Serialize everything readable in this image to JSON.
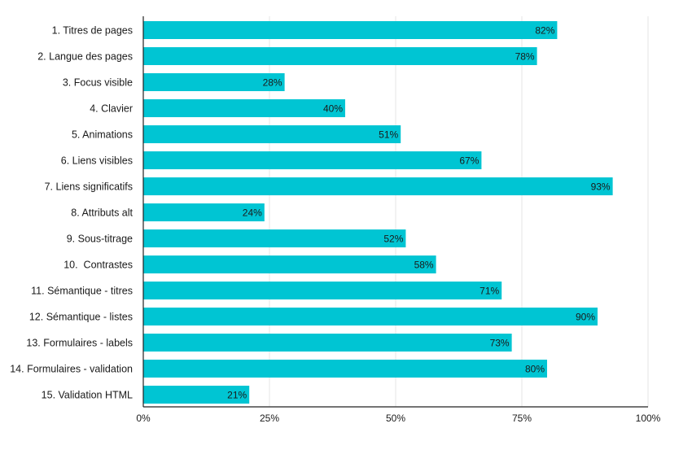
{
  "chart_data": {
    "type": "bar",
    "orientation": "horizontal",
    "title": "",
    "xlabel": "",
    "ylabel": "",
    "categories": [
      "1. Titres de pages",
      "2. Langue des pages",
      "3. Focus visible",
      "4. Clavier",
      "5. Animations",
      "6. Liens visibles",
      "7. Liens significatifs",
      "8. Attributs alt",
      "9. Sous-titrage",
      "10.  Contrastes",
      "11. Sémantique - titres",
      "12. Sémantique - listes",
      "13. Formulaires - labels",
      "14. Formulaires - validation",
      "15. Validation HTML"
    ],
    "values": [
      82,
      78,
      28,
      40,
      51,
      67,
      93,
      24,
      52,
      58,
      71,
      90,
      73,
      80,
      21
    ],
    "value_labels": [
      "82%",
      "78%",
      "28%",
      "40%",
      "51%",
      "67%",
      "93%",
      "24%",
      "52%",
      "58%",
      "71%",
      "90%",
      "73%",
      "80%",
      "21%"
    ],
    "xlim": [
      0,
      100
    ],
    "x_ticks": [
      0,
      25,
      50,
      75,
      100
    ],
    "x_tick_labels": [
      "0%",
      "25%",
      "50%",
      "75%",
      "100%"
    ],
    "grid": true,
    "legend": "none",
    "colors": {
      "bar": "#00c5d3",
      "gridline": "#e6e6e6",
      "axis": "#222222",
      "text": "#1a1a1a"
    }
  }
}
